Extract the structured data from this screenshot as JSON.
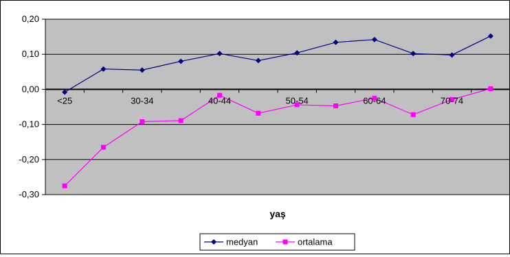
{
  "chart_data": {
    "type": "line",
    "title": "",
    "xlabel": "yaş",
    "ylabel": "",
    "ylim": [
      -0.3,
      0.2
    ],
    "yticks": [
      "0,20",
      "0,10",
      "0,00",
      "-0,10",
      "-0,20",
      "-0,30"
    ],
    "ytick_values": [
      0.2,
      0.1,
      0.0,
      -0.1,
      -0.2,
      -0.3
    ],
    "categories": [
      "<25",
      "",
      "30-34",
      "",
      "40-44",
      "",
      "50-54",
      "",
      "60-64",
      "",
      "70-74",
      ""
    ],
    "grid": true,
    "legend_position": "bottom",
    "plot_background": "#c0c0c0",
    "series": [
      {
        "name": "medyan",
        "color": "#000080",
        "marker": "diamond",
        "values": [
          -0.008,
          0.058,
          0.055,
          0.08,
          0.102,
          0.082,
          0.104,
          0.134,
          0.142,
          0.102,
          0.098,
          0.152
        ]
      },
      {
        "name": "ortalama",
        "color": "#ff00ff",
        "marker": "square",
        "values": [
          -0.275,
          -0.165,
          -0.092,
          -0.089,
          -0.017,
          -0.068,
          -0.044,
          -0.047,
          -0.025,
          -0.072,
          -0.029,
          0.002
        ]
      }
    ]
  }
}
